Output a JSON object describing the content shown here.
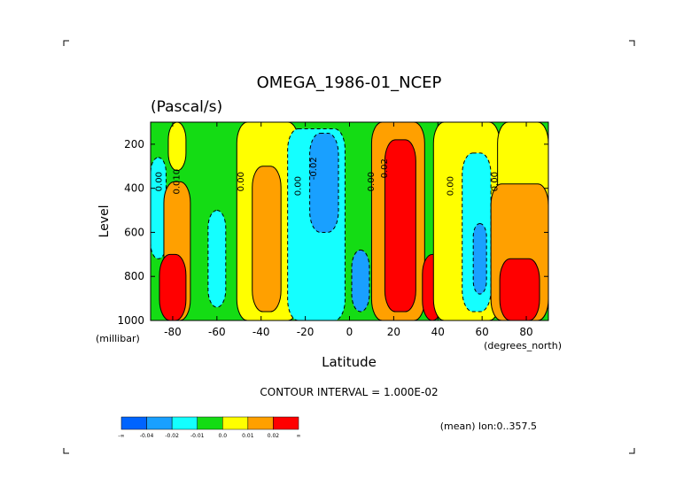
{
  "title": "OMEGA_1986-01_NCEP",
  "units": "(Pascal/s)",
  "footer": {
    "contour_interval": "CONTOUR INTERVAL = 1.000E-02",
    "mean_label": "(mean) lon:0..357.5"
  },
  "colorbar": {
    "colors": [
      "#0064ff",
      "#19a0ff",
      "#14ffff",
      "#14dc14",
      "#ffff00",
      "#ffa000",
      "#ff0000"
    ],
    "labels": [
      "-∞",
      "-0.04",
      "-0.02",
      "-0.01",
      "0.0",
      "0.01",
      "0.02",
      "∞"
    ]
  },
  "chart_data": {
    "type": "heatmap",
    "title": "OMEGA_1986-01_NCEP",
    "subtitle": "(Pascal/s)",
    "xlabel": "Latitude",
    "xunits": "(degrees_north)",
    "ylabel": "Level",
    "yunits": "(millibar)",
    "xlim": [
      -90,
      90
    ],
    "ylim": [
      1000,
      100
    ],
    "xticks": [
      -80,
      -60,
      -40,
      -20,
      0,
      20,
      40,
      60,
      80
    ],
    "xtick_labels": [
      "-80",
      "-60",
      "-40",
      "-20",
      "0",
      "20",
      "40",
      "60",
      "80"
    ],
    "yticks": [
      200,
      400,
      600,
      800,
      1000
    ],
    "ytick_labels": [
      "200",
      "400",
      "600",
      "800",
      "1000"
    ],
    "levels": [
      -0.04,
      -0.02,
      -0.01,
      0.0,
      0.01,
      0.02
    ],
    "contour_labels": [
      {
        "text": "0.00",
        "x": -85,
        "y": 370
      },
      {
        "text": "0.010",
        "x": -77,
        "y": 370
      },
      {
        "text": "0.00",
        "x": -48,
        "y": 370
      },
      {
        "text": "0.00",
        "x": -22,
        "y": 390
      },
      {
        "text": "-0.02",
        "x": -15,
        "y": 310
      },
      {
        "text": "0.00",
        "x": 11,
        "y": 370
      },
      {
        "text": "0.02",
        "x": 17,
        "y": 310
      },
      {
        "text": "0.00",
        "x": 47,
        "y": 390
      },
      {
        "text": "0.00",
        "x": 67,
        "y": 370
      }
    ],
    "regions": [
      {
        "level": "0.0",
        "lat": [
          -82,
          -74
        ],
        "p": [
          100,
          320
        ]
      },
      {
        "level": "-0.02",
        "lat": [
          -90,
          -83
        ],
        "p": [
          260,
          720
        ]
      },
      {
        "level": "0.01",
        "lat": [
          -84,
          -72
        ],
        "p": [
          370,
          1000
        ]
      },
      {
        "level": "0.02",
        "lat": [
          -86,
          -74
        ],
        "p": [
          700,
          1000
        ]
      },
      {
        "level": "-0.02",
        "lat": [
          -64,
          -56
        ],
        "p": [
          500,
          940
        ]
      },
      {
        "level": "0.0",
        "lat": [
          -51,
          -23
        ],
        "p": [
          100,
          1000
        ]
      },
      {
        "level": "0.01",
        "lat": [
          -44,
          -31
        ],
        "p": [
          300,
          960
        ]
      },
      {
        "level": "-0.02",
        "lat": [
          -28,
          -2
        ],
        "p": [
          130,
          1000
        ]
      },
      {
        "level": "-0.04",
        "lat": [
          -18,
          -5
        ],
        "p": [
          150,
          600
        ]
      },
      {
        "level": "-0.04",
        "lat": [
          1,
          9
        ],
        "p": [
          680,
          960
        ]
      },
      {
        "level": "0.01",
        "lat": [
          10,
          34
        ],
        "p": [
          100,
          1000
        ]
      },
      {
        "level": "0.02",
        "lat": [
          16,
          30
        ],
        "p": [
          180,
          960
        ]
      },
      {
        "level": "0.02",
        "lat": [
          33,
          42
        ],
        "p": [
          700,
          1000
        ]
      },
      {
        "level": "0.0",
        "lat": [
          38,
          68
        ],
        "p": [
          100,
          1000
        ]
      },
      {
        "level": "-0.02",
        "lat": [
          51,
          64
        ],
        "p": [
          240,
          960
        ]
      },
      {
        "level": "-0.04",
        "lat": [
          56,
          62
        ],
        "p": [
          560,
          880
        ]
      },
      {
        "level": "0.0",
        "lat": [
          67,
          90
        ],
        "p": [
          100,
          1000
        ]
      },
      {
        "level": "0.01",
        "lat": [
          64,
          90
        ],
        "p": [
          380,
          1000
        ]
      },
      {
        "level": "0.02",
        "lat": [
          68,
          86
        ],
        "p": [
          720,
          1000
        ]
      }
    ]
  }
}
